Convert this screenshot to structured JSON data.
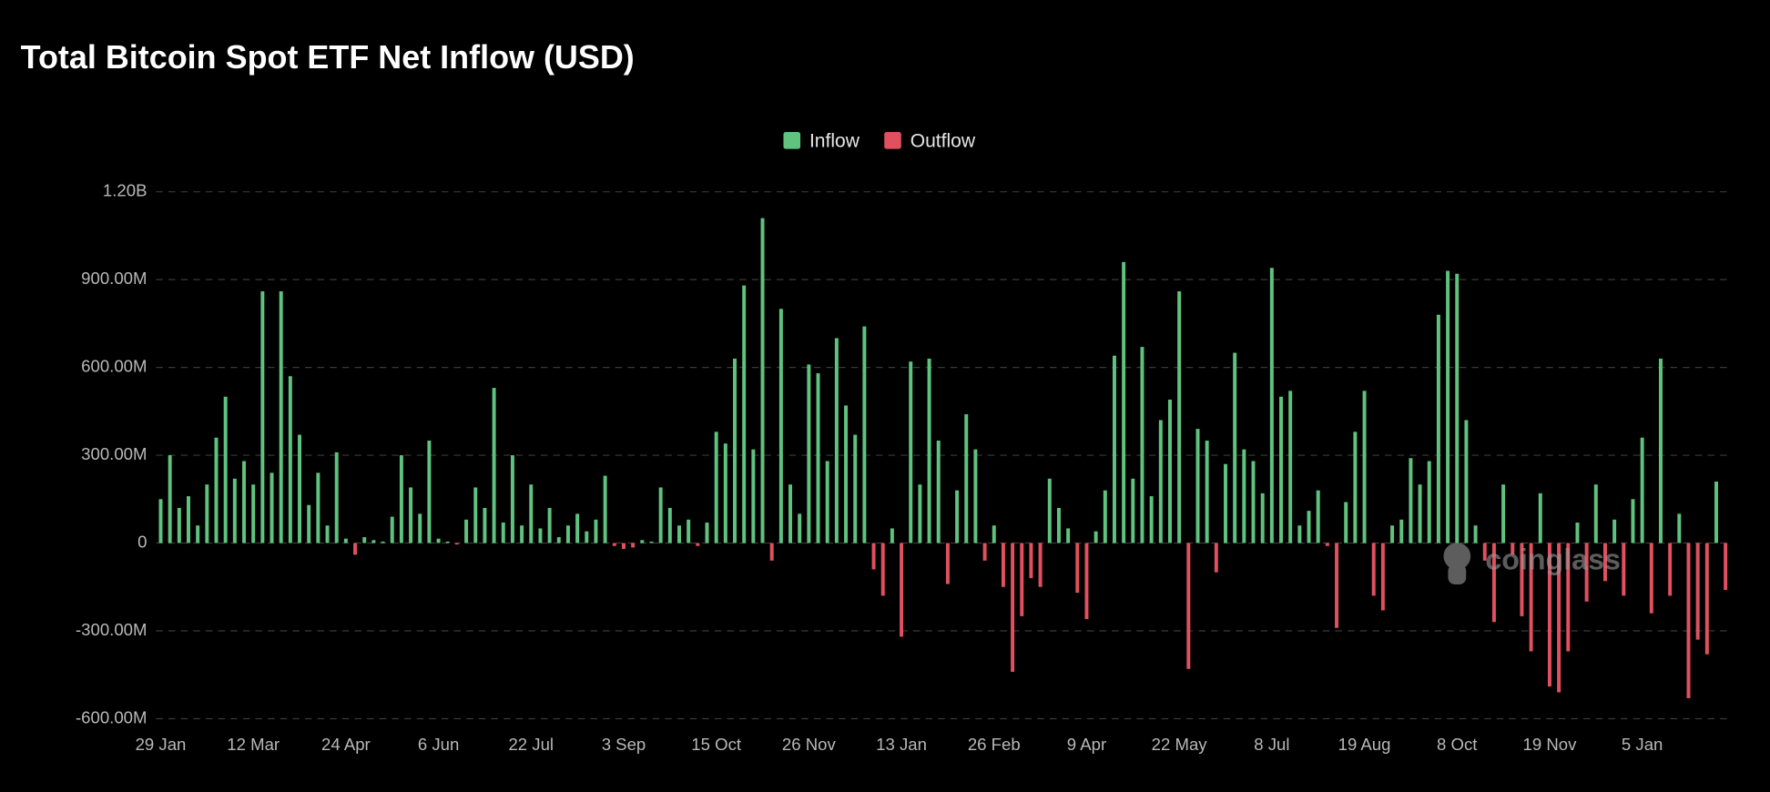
{
  "chart_data": {
    "type": "bar",
    "title": "Total Bitcoin Spot ETF Net Inflow (USD)",
    "watermark": "coinglass",
    "categories": [
      "29 Jan",
      null,
      null,
      null,
      null,
      null,
      null,
      null,
      null,
      null,
      "12 Mar",
      null,
      null,
      null,
      null,
      null,
      null,
      null,
      null,
      null,
      "24 Apr",
      null,
      null,
      null,
      null,
      null,
      null,
      null,
      null,
      null,
      "6 Jun",
      null,
      null,
      null,
      null,
      null,
      null,
      null,
      null,
      null,
      "22 Jul",
      null,
      null,
      null,
      null,
      null,
      null,
      null,
      null,
      null,
      "3 Sep",
      null,
      null,
      null,
      null,
      null,
      null,
      null,
      null,
      null,
      "15 Oct",
      null,
      null,
      null,
      null,
      null,
      null,
      null,
      null,
      null,
      "26 Nov",
      null,
      null,
      null,
      null,
      null,
      null,
      null,
      null,
      null,
      "13 Jan",
      null,
      null,
      null,
      null,
      null,
      null,
      null,
      null,
      null,
      "26 Feb",
      null,
      null,
      null,
      null,
      null,
      null,
      null,
      null,
      null,
      "9 Apr",
      null,
      null,
      null,
      null,
      null,
      null,
      null,
      null,
      null,
      "22 May",
      null,
      null,
      null,
      null,
      null,
      null,
      null,
      null,
      null,
      "8 Jul",
      null,
      null,
      null,
      null,
      null,
      null,
      null,
      null,
      null,
      "19 Aug",
      null,
      null,
      null,
      null,
      null,
      null,
      null,
      null,
      null,
      "8 Oct",
      null,
      null,
      null,
      null,
      null,
      null,
      null,
      null,
      null,
      "19 Nov",
      null,
      null,
      null,
      null,
      null,
      null,
      null,
      null,
      null,
      "5 Jan",
      null,
      null,
      null,
      null,
      null,
      null,
      null,
      null,
      null
    ],
    "series": [
      {
        "name": "Inflow",
        "color": "#5fc27e",
        "values": [
          150000000.0,
          300000000.0,
          120000000.0,
          160000000.0,
          60000000.0,
          200000000.0,
          360000000.0,
          500000000.0,
          220000000.0,
          280000000.0,
          200000000.0,
          860000000.0,
          240000000.0,
          860000000.0,
          570000000.0,
          370000000.0,
          130000000.0,
          240000000.0,
          60000000.0,
          310000000.0,
          15000000.0,
          null,
          20000000.0,
          10000000.0,
          5000000.0,
          90000000.0,
          300000000.0,
          190000000.0,
          100000000.0,
          350000000.0,
          15000000.0,
          5000000.0,
          null,
          80000000.0,
          190000000.0,
          120000000.0,
          530000000.0,
          70000000.0,
          300000000.0,
          60000000.0,
          200000000.0,
          50000000.0,
          120000000.0,
          20000000.0,
          60000000.0,
          100000000.0,
          40000000.0,
          80000000.0,
          230000000.0,
          null,
          null,
          null,
          10000000.0,
          5000000.0,
          190000000.0,
          120000000.0,
          60000000.0,
          80000000.0,
          null,
          70000000.0,
          380000000.0,
          340000000.0,
          630000000.0,
          880000000.0,
          320000000.0,
          1110000000.0,
          null,
          800000000.0,
          200000000.0,
          100000000.0,
          610000000.0,
          580000000.0,
          280000000.0,
          700000000.0,
          470000000.0,
          370000000.0,
          740000000.0,
          null,
          null,
          50000000.0,
          null,
          620000000.0,
          200000000.0,
          630000000.0,
          350000000.0,
          null,
          180000000.0,
          440000000.0,
          320000000.0,
          null,
          60000000.0,
          null,
          null,
          null,
          null,
          null,
          220000000.0,
          120000000.0,
          50000000.0,
          null,
          null,
          40000000.0,
          180000000.0,
          640000000.0,
          960000000.0,
          220000000.0,
          670000000.0,
          160000000.0,
          420000000.0,
          490000000.0,
          860000000.0,
          null,
          390000000.0,
          350000000.0,
          null,
          270000000.0,
          650000000.0,
          320000000.0,
          280000000.0,
          170000000.0,
          940000000.0,
          500000000.0,
          520000000.0,
          60000000.0,
          110000000.0,
          180000000.0,
          null,
          null,
          140000000.0,
          380000000.0,
          520000000.0,
          null,
          null,
          60000000.0,
          80000000.0,
          290000000.0,
          200000000.0,
          280000000.0,
          780000000.0,
          930000000.0,
          920000000.0,
          420000000.0,
          60000000.0,
          null,
          null,
          200000000.0,
          null,
          null,
          null,
          170000000.0,
          null,
          null,
          null,
          70000000.0,
          null,
          200000000.0,
          null,
          80000000.0,
          null,
          150000000.0,
          360000000.0,
          null,
          630000000.0,
          null,
          100000000.0,
          null,
          null,
          null,
          210000000.0,
          null
        ]
      },
      {
        "name": "Outflow",
        "color": "#e0505f",
        "values": [
          null,
          null,
          null,
          null,
          null,
          null,
          null,
          null,
          null,
          null,
          null,
          null,
          null,
          null,
          null,
          null,
          null,
          null,
          null,
          null,
          null,
          -40000000.0,
          null,
          null,
          null,
          null,
          null,
          null,
          null,
          null,
          null,
          null,
          -5000000.0,
          null,
          null,
          null,
          null,
          null,
          null,
          null,
          null,
          null,
          null,
          null,
          null,
          null,
          null,
          null,
          null,
          -10000000.0,
          -20000000.0,
          -15000000.0,
          null,
          null,
          null,
          null,
          null,
          null,
          -10000000.0,
          null,
          null,
          null,
          null,
          null,
          null,
          null,
          -60000000.0,
          null,
          null,
          null,
          null,
          null,
          null,
          null,
          null,
          null,
          null,
          -90000000.0,
          -180000000.0,
          null,
          -320000000.0,
          null,
          null,
          null,
          null,
          -140000000.0,
          null,
          null,
          null,
          -60000000.0,
          null,
          -150000000.0,
          -440000000.0,
          -250000000.0,
          -120000000.0,
          -150000000.0,
          null,
          null,
          null,
          -170000000.0,
          -260000000.0,
          null,
          null,
          null,
          null,
          null,
          null,
          null,
          null,
          null,
          null,
          -430000000.0,
          null,
          null,
          -100000000.0,
          null,
          null,
          null,
          null,
          null,
          null,
          null,
          null,
          null,
          null,
          null,
          -10000000.0,
          -290000000.0,
          null,
          null,
          null,
          -180000000.0,
          -230000000.0,
          null,
          null,
          null,
          null,
          null,
          null,
          null,
          null,
          null,
          null,
          -60000000.0,
          -270000000.0,
          null,
          -40000000.0,
          -250000000.0,
          -370000000.0,
          null,
          -490000000.0,
          -510000000.0,
          -370000000.0,
          null,
          -200000000.0,
          null,
          -130000000.0,
          null,
          -180000000.0,
          null,
          null,
          -240000000.0,
          null,
          -180000000.0,
          null,
          -530000000.0,
          -330000000.0,
          -380000000.0,
          null,
          -160000000.0
        ]
      }
    ],
    "ylim": [
      -600000000.0,
      1200000000.0
    ],
    "yticks": [
      {
        "value": -600000000.0,
        "label": "-600.00M"
      },
      {
        "value": -300000000.0,
        "label": "-300.00M"
      },
      0,
      {
        "value": 300000000.0,
        "label": "300.00M"
      },
      {
        "value": 600000000.0,
        "label": "600.00M"
      },
      {
        "value": 900000000.0,
        "label": "900.00M"
      },
      {
        "value": 1200000000.0,
        "label": "1.20B"
      }
    ],
    "grid": true,
    "legend": "top"
  }
}
